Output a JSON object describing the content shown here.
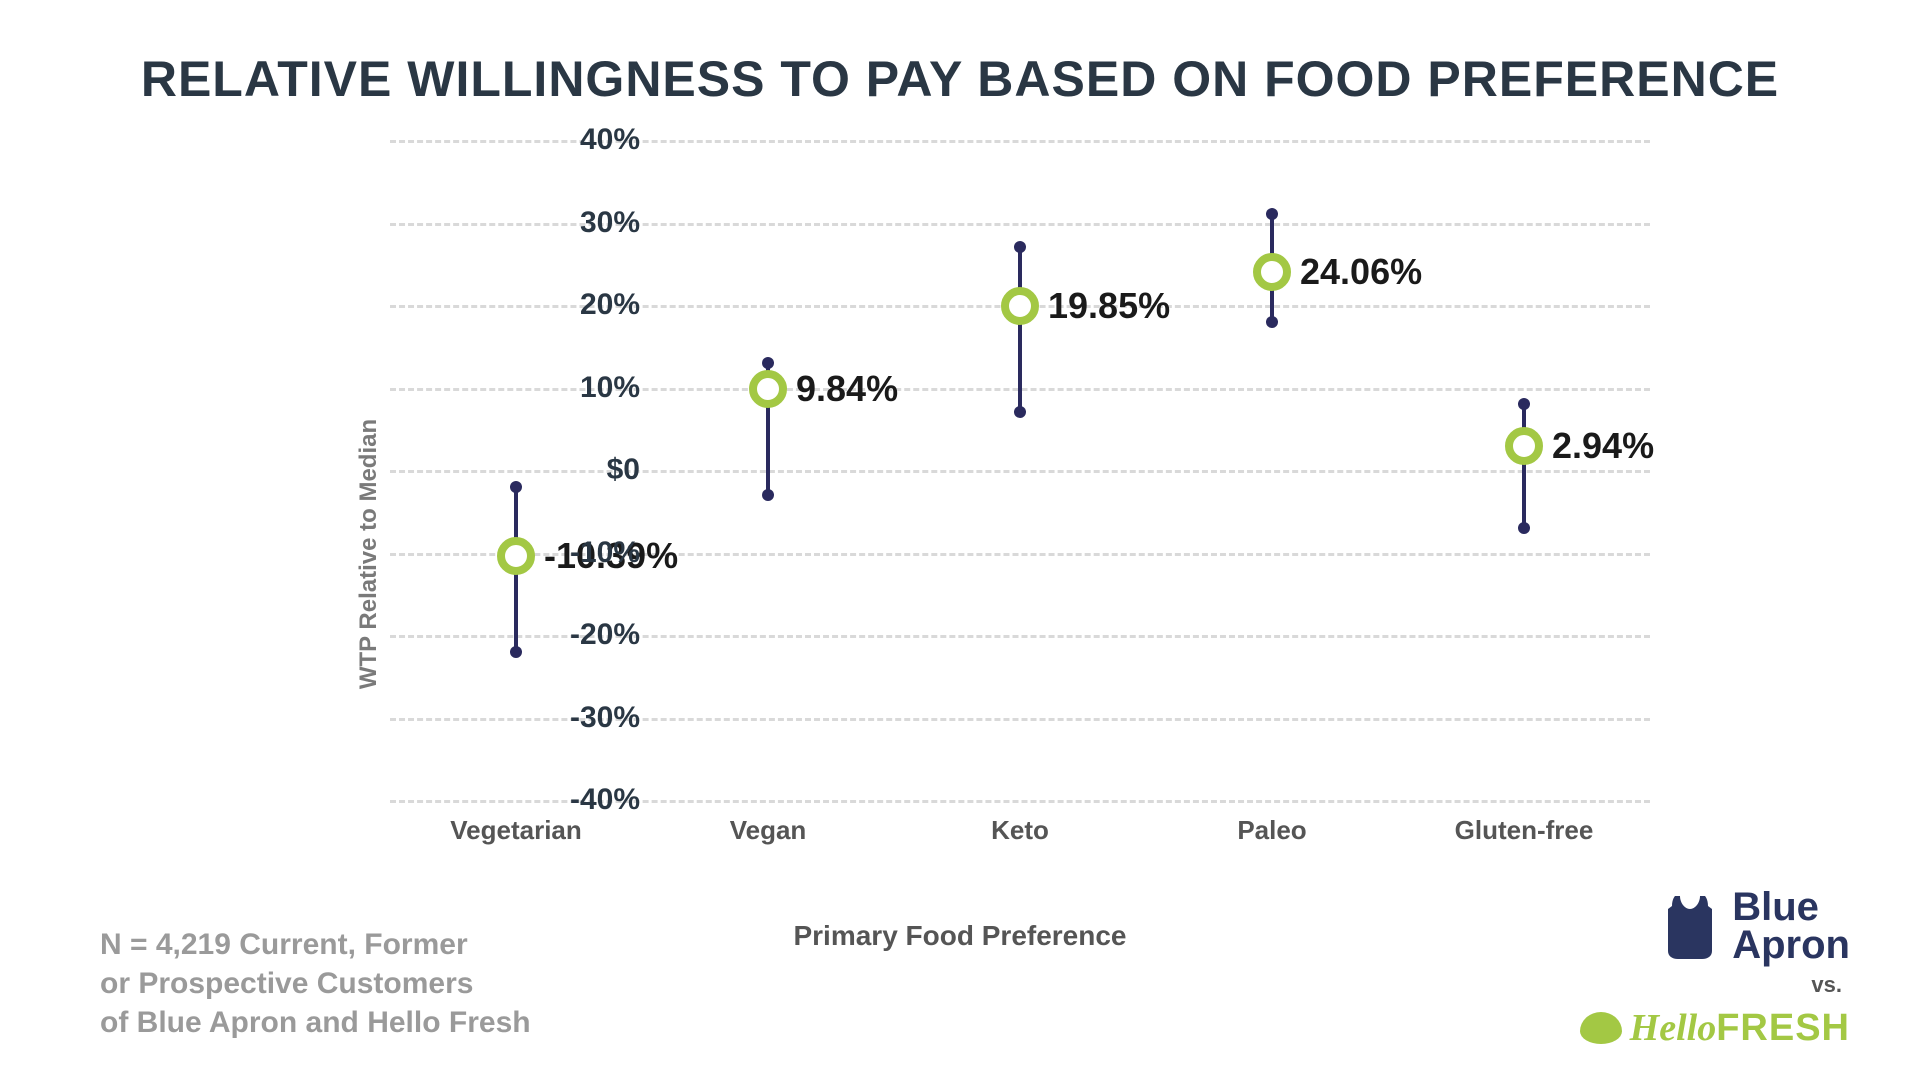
{
  "title": "RELATIVE WILLINGNESS TO PAY BASED ON FOOD PREFERENCE",
  "chart": {
    "type": "error-dot",
    "ylabel": "WTP Relative to Median",
    "xlabel": "Primary Food Preference",
    "ylim": [
      -40,
      40
    ],
    "ytick_step": 10,
    "yticks": [
      {
        "v": 40,
        "label": "40%"
      },
      {
        "v": 30,
        "label": "30%"
      },
      {
        "v": 20,
        "label": "20%"
      },
      {
        "v": 10,
        "label": "10%"
      },
      {
        "v": 0,
        "label": "$0"
      },
      {
        "v": -10,
        "label": "-10%"
      },
      {
        "v": -20,
        "label": "-20%"
      },
      {
        "v": -30,
        "label": "-30%"
      },
      {
        "v": -40,
        "label": "-40%"
      }
    ],
    "categories": [
      "Vegetarian",
      "Vegan",
      "Keto",
      "Paleo",
      "Gluten-free"
    ],
    "points": [
      {
        "value": -10.39,
        "low": -22,
        "high": -2,
        "label": "-10.39%"
      },
      {
        "value": 9.84,
        "low": -3,
        "high": 13,
        "label": "9.84%"
      },
      {
        "value": 19.85,
        "low": 7,
        "high": 27,
        "label": "19.85%"
      },
      {
        "value": 24.06,
        "low": 18,
        "high": 31,
        "label": "24.06%"
      },
      {
        "value": 2.94,
        "low": -7,
        "high": 8,
        "label": "2.94%"
      }
    ],
    "marker_border_color": "#a3c844",
    "marker_fill_color": "#ffffff",
    "error_color": "#2a2a5e",
    "grid_color": "#d9d9d9",
    "background_color": "#ffffff",
    "title_color": "#2a3744",
    "title_fontsize": 50,
    "tick_fontsize": 30,
    "value_label_fontsize": 36,
    "category_fontsize": 26
  },
  "footnote_line1": "N = 4,219 Current, Former",
  "footnote_line2": "or Prospective Customers",
  "footnote_line3": "of Blue Apron and Hello Fresh",
  "logos": {
    "blue_apron": "Blue Apron",
    "vs": "vs.",
    "hellofresh_hello": "Hello",
    "hellofresh_fresh": "FRESH"
  }
}
